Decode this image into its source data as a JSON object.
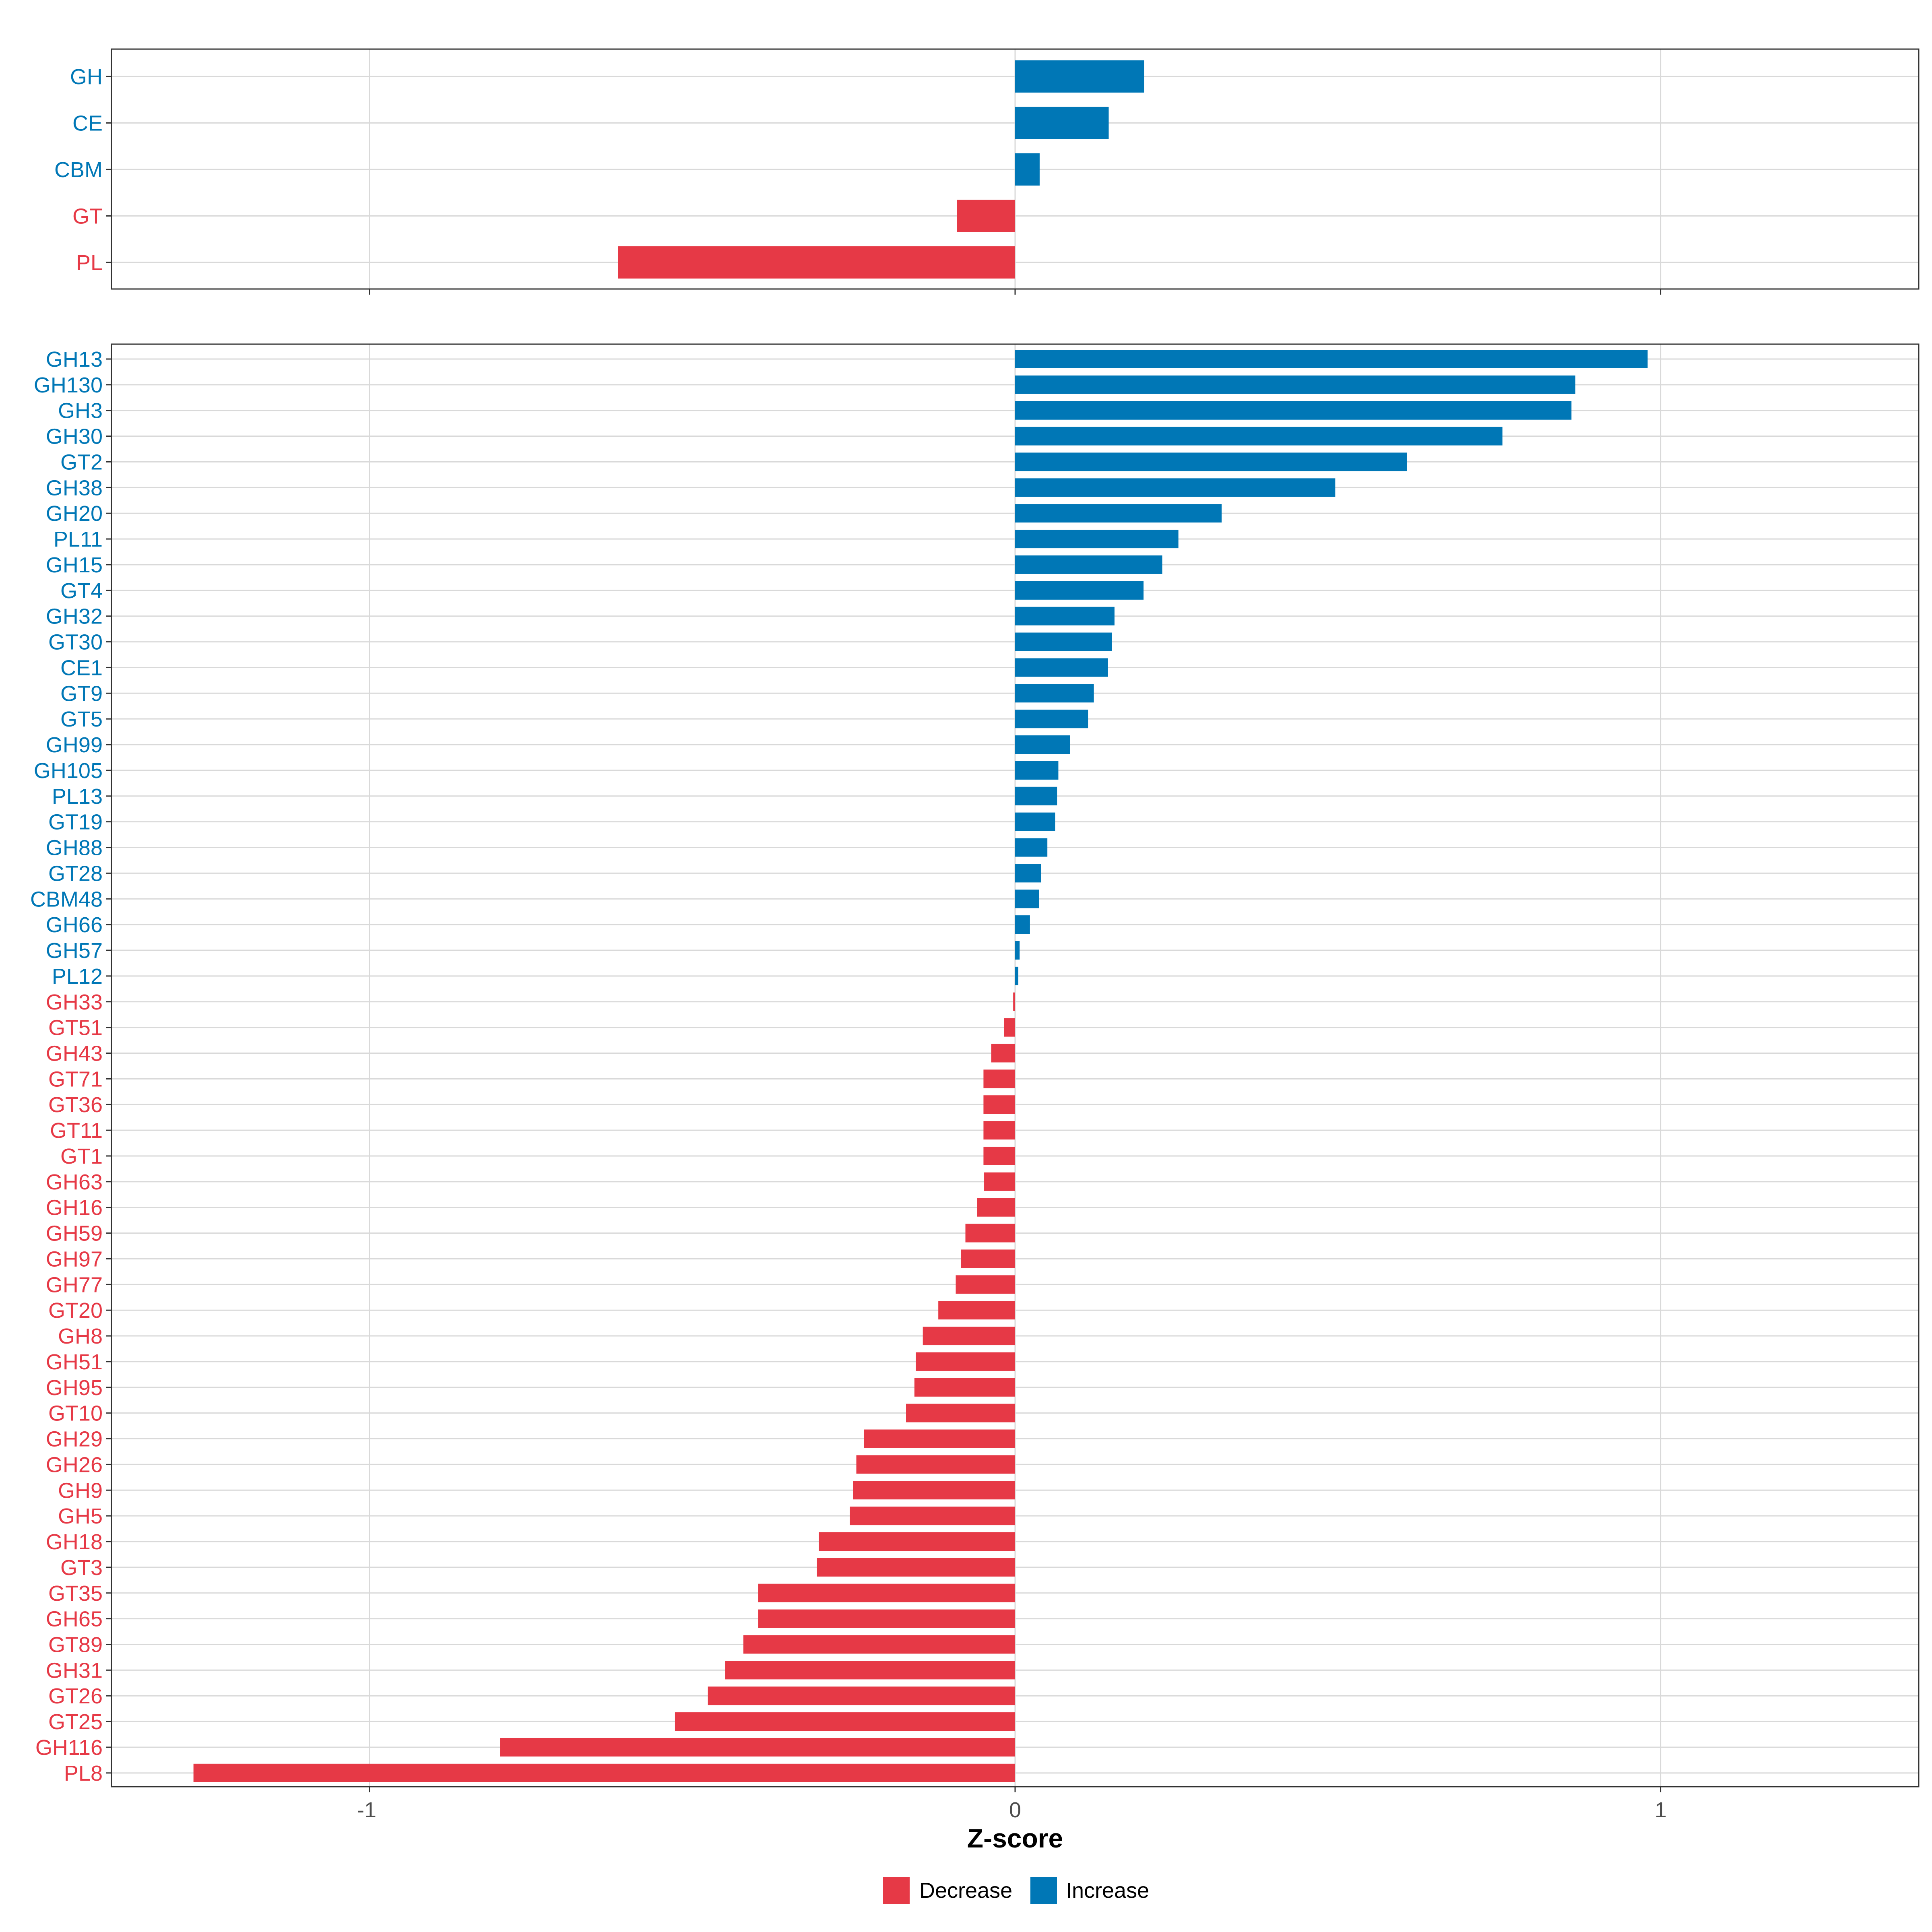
{
  "chart_data": [
    {
      "type": "bar",
      "orientation": "horizontal",
      "panel": "top",
      "xlim": [
        -1.4,
        1.4
      ],
      "categories": [
        "GH",
        "CE",
        "CBM",
        "GT",
        "PL"
      ],
      "values": [
        0.2,
        0.145,
        0.038,
        -0.09,
        -0.615
      ],
      "xticks": [
        -1,
        0,
        1
      ],
      "grid": true
    },
    {
      "type": "bar",
      "orientation": "horizontal",
      "panel": "bottom",
      "xlim": [
        -1.4,
        1.4
      ],
      "categories": [
        "GH13",
        "GH130",
        "GH3",
        "GH30",
        "GT2",
        "GH38",
        "GH20",
        "PL11",
        "GH15",
        "GT4",
        "GH32",
        "GT30",
        "CE1",
        "GT9",
        "GT5",
        "GH99",
        "GH105",
        "PL13",
        "GT19",
        "GH88",
        "GT28",
        "CBM48",
        "GH66",
        "GH57",
        "PL12",
        "GH33",
        "GT51",
        "GH43",
        "GT71",
        "GT36",
        "GT11",
        "GT1",
        "GH63",
        "GH16",
        "GH59",
        "GH97",
        "GH77",
        "GT20",
        "GH8",
        "GH51",
        "GH95",
        "GT10",
        "GH29",
        "GH26",
        "GH9",
        "GH5",
        "GH18",
        "GT3",
        "GT35",
        "GH65",
        "GT89",
        "GH31",
        "GT26",
        "GT25",
        "GH116",
        "PL8"
      ],
      "values": [
        0.98,
        0.868,
        0.862,
        0.755,
        0.607,
        0.496,
        0.32,
        0.253,
        0.228,
        0.199,
        0.154,
        0.15,
        0.144,
        0.122,
        0.113,
        0.085,
        0.067,
        0.065,
        0.062,
        0.05,
        0.04,
        0.037,
        0.023,
        0.007,
        0.005,
        -0.003,
        -0.017,
        -0.037,
        -0.049,
        -0.049,
        -0.049,
        -0.049,
        -0.048,
        -0.059,
        -0.077,
        -0.084,
        -0.092,
        -0.119,
        -0.143,
        -0.154,
        -0.156,
        -0.169,
        -0.234,
        -0.246,
        -0.251,
        -0.256,
        -0.304,
        -0.307,
        -0.398,
        -0.398,
        -0.421,
        -0.449,
        -0.476,
        -0.527,
        -0.798,
        -1.273
      ],
      "xticks": [
        -1,
        0,
        1
      ],
      "xlabel": "Z-score",
      "grid": true
    }
  ],
  "tick_labels": [
    "-1",
    "0",
    "1"
  ],
  "legend": {
    "placement": "bottom",
    "items": [
      {
        "label": "Decrease",
        "color": "#E63946"
      },
      {
        "label": "Increase",
        "color": "#0077B6"
      }
    ]
  },
  "colors": {
    "increase": "#0077B6",
    "decrease": "#E63946"
  }
}
